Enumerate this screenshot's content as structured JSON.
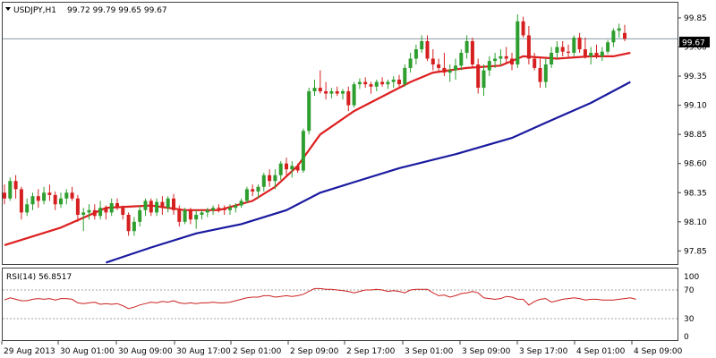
{
  "header": {
    "symbol": "USDJPY,H1",
    "ohlc": "99.72 99.79 99.65 99.67"
  },
  "price_tag": "99.67",
  "rsi_header": "RSI(14) 56.8517",
  "colors": {
    "bull": "#2e9e2e",
    "bear": "#d62020",
    "ma_fast": "#dd2020",
    "ma_slow": "#1a1aa0",
    "rsi": "#cc2020",
    "frame": "#404040",
    "level": "#a0a0a0"
  },
  "chart_data": [
    {
      "type": "candlestick",
      "title": "USDJPY,H1",
      "ylim": [
        97.73,
        99.98
      ],
      "yticks": [
        "99.85",
        "99.60",
        "99.35",
        "99.10",
        "98.85",
        "98.60",
        "98.35",
        "98.10",
        "97.85"
      ],
      "xticks": [
        "29 Aug 2013",
        "30 Aug 01:00",
        "30 Aug 09:00",
        "30 Aug 17:00",
        "2 Sep 01:00",
        "2 Sep 09:00",
        "2 Sep 17:00",
        "3 Sep 01:00",
        "3 Sep 09:00",
        "3 Sep 17:00",
        "4 Sep 01:00",
        "4 Sep 09:00"
      ],
      "current_price": 99.67,
      "candles": [
        [
          98.35,
          98.42,
          98.25,
          98.3
        ],
        [
          98.3,
          98.48,
          98.28,
          98.45
        ],
        [
          98.45,
          98.5,
          98.3,
          98.38
        ],
        [
          98.38,
          98.4,
          98.12,
          98.18
        ],
        [
          98.18,
          98.3,
          98.15,
          98.25
        ],
        [
          98.25,
          98.35,
          98.2,
          98.32
        ],
        [
          98.32,
          98.38,
          98.22,
          98.28
        ],
        [
          98.28,
          98.4,
          98.25,
          98.35
        ],
        [
          98.35,
          98.42,
          98.28,
          98.33
        ],
        [
          98.33,
          98.36,
          98.2,
          98.25
        ],
        [
          98.25,
          98.35,
          98.22,
          98.3
        ],
        [
          98.3,
          98.38,
          98.25,
          98.35
        ],
        [
          98.35,
          98.4,
          98.28,
          98.3
        ],
        [
          98.3,
          98.33,
          98.1,
          98.16
        ],
        [
          98.16,
          98.22,
          98.02,
          98.18
        ],
        [
          98.18,
          98.25,
          98.12,
          98.2
        ],
        [
          98.2,
          98.25,
          98.12,
          98.15
        ],
        [
          98.15,
          98.28,
          98.12,
          98.22
        ],
        [
          98.22,
          98.24,
          98.12,
          98.18
        ],
        [
          98.18,
          98.3,
          98.15,
          98.26
        ],
        [
          98.26,
          98.3,
          98.2,
          98.22
        ],
        [
          98.22,
          98.24,
          98.12,
          98.16
        ],
        [
          98.16,
          98.18,
          97.98,
          98.02
        ],
        [
          98.02,
          98.14,
          97.98,
          98.1
        ],
        [
          98.1,
          98.24,
          98.06,
          98.2
        ],
        [
          98.2,
          98.3,
          98.15,
          98.28
        ],
        [
          98.28,
          98.3,
          98.15,
          98.18
        ],
        [
          98.18,
          98.3,
          98.15,
          98.27
        ],
        [
          98.27,
          98.32,
          98.16,
          98.22
        ],
        [
          98.22,
          98.32,
          98.18,
          98.3
        ],
        [
          98.3,
          98.34,
          98.16,
          98.2
        ],
        [
          98.2,
          98.24,
          98.06,
          98.1
        ],
        [
          98.1,
          98.22,
          98.08,
          98.2
        ],
        [
          98.2,
          98.22,
          98.08,
          98.12
        ],
        [
          98.12,
          98.2,
          98.04,
          98.16
        ],
        [
          98.16,
          98.2,
          98.12,
          98.18
        ],
        [
          98.18,
          98.22,
          98.14,
          98.2
        ],
        [
          98.2,
          98.24,
          98.16,
          98.22
        ],
        [
          98.22,
          98.25,
          98.18,
          98.21
        ],
        [
          98.21,
          98.24,
          98.16,
          98.2
        ],
        [
          98.2,
          98.25,
          98.16,
          98.22
        ],
        [
          98.22,
          98.26,
          98.18,
          98.24
        ],
        [
          98.24,
          98.3,
          98.22,
          98.28
        ],
        [
          98.28,
          98.4,
          98.26,
          98.38
        ],
        [
          98.38,
          98.42,
          98.32,
          98.36
        ],
        [
          98.36,
          98.42,
          98.3,
          98.4
        ],
        [
          98.4,
          98.52,
          98.36,
          98.5
        ],
        [
          98.5,
          98.55,
          98.4,
          98.45
        ],
        [
          98.45,
          98.55,
          98.38,
          98.5
        ],
        [
          98.5,
          98.62,
          98.46,
          98.6
        ],
        [
          98.6,
          98.65,
          98.5,
          98.55
        ],
        [
          98.55,
          98.62,
          98.48,
          98.58
        ],
        [
          98.58,
          98.6,
          98.52,
          98.54
        ],
        [
          98.54,
          98.9,
          98.52,
          98.88
        ],
        [
          98.88,
          99.25,
          98.85,
          99.22
        ],
        [
          99.22,
          99.32,
          99.18,
          99.25
        ],
        [
          99.25,
          99.4,
          99.2,
          99.22
        ],
        [
          99.22,
          99.3,
          99.15,
          99.2
        ],
        [
          99.2,
          99.25,
          99.16,
          99.22
        ],
        [
          99.22,
          99.26,
          99.18,
          99.2
        ],
        [
          99.2,
          99.24,
          99.15,
          99.22
        ],
        [
          99.22,
          99.26,
          99.05,
          99.1
        ],
        [
          99.1,
          99.3,
          99.08,
          99.28
        ],
        [
          99.28,
          99.33,
          99.24,
          99.3
        ],
        [
          99.3,
          99.34,
          99.25,
          99.28
        ],
        [
          99.28,
          99.3,
          99.2,
          99.26
        ],
        [
          99.26,
          99.32,
          99.22,
          99.3
        ],
        [
          99.3,
          99.34,
          99.26,
          99.28
        ],
        [
          99.28,
          99.32,
          99.24,
          99.3
        ],
        [
          99.3,
          99.35,
          99.25,
          99.32
        ],
        [
          99.32,
          99.36,
          99.26,
          99.28
        ],
        [
          99.28,
          99.45,
          99.26,
          99.42
        ],
        [
          99.42,
          99.55,
          99.38,
          99.5
        ],
        [
          99.5,
          99.62,
          99.45,
          99.58
        ],
        [
          99.58,
          99.7,
          99.55,
          99.65
        ],
        [
          99.65,
          99.7,
          99.48,
          99.5
        ],
        [
          99.5,
          99.58,
          99.4,
          99.45
        ],
        [
          99.45,
          99.5,
          99.38,
          99.42
        ],
        [
          99.42,
          99.55,
          99.35,
          99.38
        ],
        [
          99.38,
          99.45,
          99.3,
          99.4
        ],
        [
          99.4,
          99.5,
          99.32,
          99.44
        ],
        [
          99.44,
          99.58,
          99.4,
          99.55
        ],
        [
          99.55,
          99.7,
          99.5,
          99.65
        ],
        [
          99.65,
          99.68,
          99.42,
          99.45
        ],
        [
          99.45,
          99.5,
          99.2,
          99.25
        ],
        [
          99.25,
          99.45,
          99.18,
          99.4
        ],
        [
          99.4,
          99.52,
          99.35,
          99.48
        ],
        [
          99.48,
          99.55,
          99.42,
          99.5
        ],
        [
          99.5,
          99.58,
          99.44,
          99.52
        ],
        [
          99.52,
          99.6,
          99.46,
          99.5
        ],
        [
          99.5,
          99.55,
          99.4,
          99.45
        ],
        [
          99.45,
          99.88,
          99.42,
          99.82
        ],
        [
          99.82,
          99.86,
          99.68,
          99.7
        ],
        [
          99.7,
          99.78,
          99.45,
          99.5
        ],
        [
          99.5,
          99.55,
          99.4,
          99.42
        ],
        [
          99.42,
          99.5,
          99.25,
          99.3
        ],
        [
          99.3,
          99.5,
          99.25,
          99.45
        ],
        [
          99.45,
          99.6,
          99.42,
          99.55
        ],
        [
          99.55,
          99.65,
          99.5,
          99.6
        ],
        [
          99.6,
          99.65,
          99.52,
          99.56
        ],
        [
          99.56,
          99.62,
          99.5,
          99.55
        ],
        [
          99.55,
          99.7,
          99.52,
          99.68
        ],
        [
          99.68,
          99.72,
          99.55,
          99.58
        ],
        [
          99.58,
          99.68,
          99.5,
          99.52
        ],
        [
          99.52,
          99.6,
          99.45,
          99.55
        ],
        [
          99.55,
          99.62,
          99.5,
          99.52
        ],
        [
          99.52,
          99.6,
          99.48,
          99.56
        ],
        [
          99.56,
          99.66,
          99.54,
          99.64
        ],
        [
          99.64,
          99.76,
          99.6,
          99.74
        ],
        [
          99.74,
          99.8,
          99.68,
          99.76
        ],
        [
          99.72,
          99.79,
          99.65,
          99.67
        ]
      ],
      "ma_fast": [
        [
          0,
          97.9
        ],
        [
          10,
          98.05
        ],
        [
          18,
          98.22
        ],
        [
          26,
          98.24
        ],
        [
          32,
          98.2
        ],
        [
          38,
          98.2
        ],
        [
          44,
          98.28
        ],
        [
          48,
          98.4
        ],
        [
          52,
          98.58
        ],
        [
          56,
          98.85
        ],
        [
          62,
          99.05
        ],
        [
          68,
          99.2
        ],
        [
          72,
          99.3
        ],
        [
          76,
          99.38
        ],
        [
          82,
          99.42
        ],
        [
          88,
          99.44
        ],
        [
          92,
          99.52
        ],
        [
          98,
          99.5
        ],
        [
          104,
          99.52
        ],
        [
          108,
          99.52
        ],
        [
          111,
          99.55
        ]
      ],
      "ma_slow": [
        [
          18,
          97.75
        ],
        [
          26,
          97.88
        ],
        [
          34,
          98.0
        ],
        [
          42,
          98.08
        ],
        [
          50,
          98.2
        ],
        [
          56,
          98.35
        ],
        [
          62,
          98.44
        ],
        [
          70,
          98.56
        ],
        [
          80,
          98.68
        ],
        [
          90,
          98.82
        ],
        [
          96,
          98.95
        ],
        [
          104,
          99.12
        ],
        [
          111,
          99.3
        ]
      ]
    },
    {
      "type": "line",
      "title": "RSI(14) 56.8517",
      "ylim": [
        0,
        100
      ],
      "yticks": [
        "100",
        "70",
        "30",
        "0"
      ],
      "levels": [
        70,
        30
      ],
      "values": [
        56,
        59,
        57,
        55,
        55,
        57,
        58,
        57,
        58,
        56,
        58,
        58,
        57,
        52,
        51,
        52,
        53,
        50,
        51,
        50,
        51,
        48,
        44,
        46,
        49,
        51,
        53,
        52,
        54,
        53,
        55,
        52,
        51,
        52,
        51,
        52,
        52,
        53,
        52,
        52,
        53,
        55,
        57,
        59,
        60,
        60,
        62,
        62,
        60,
        61,
        62,
        61,
        62,
        64,
        68,
        72,
        72,
        71,
        71,
        70,
        69,
        68,
        66,
        68,
        70,
        70,
        71,
        70,
        68,
        69,
        68,
        66,
        70,
        71,
        71,
        71,
        66,
        62,
        63,
        60,
        62,
        65,
        66,
        68,
        66,
        59,
        58,
        57,
        58,
        61,
        60,
        57,
        57,
        49,
        54,
        57,
        58,
        53,
        55,
        57,
        58,
        59,
        58,
        56,
        57,
        57,
        56,
        56,
        56,
        57,
        58,
        59,
        57
      ]
    }
  ]
}
